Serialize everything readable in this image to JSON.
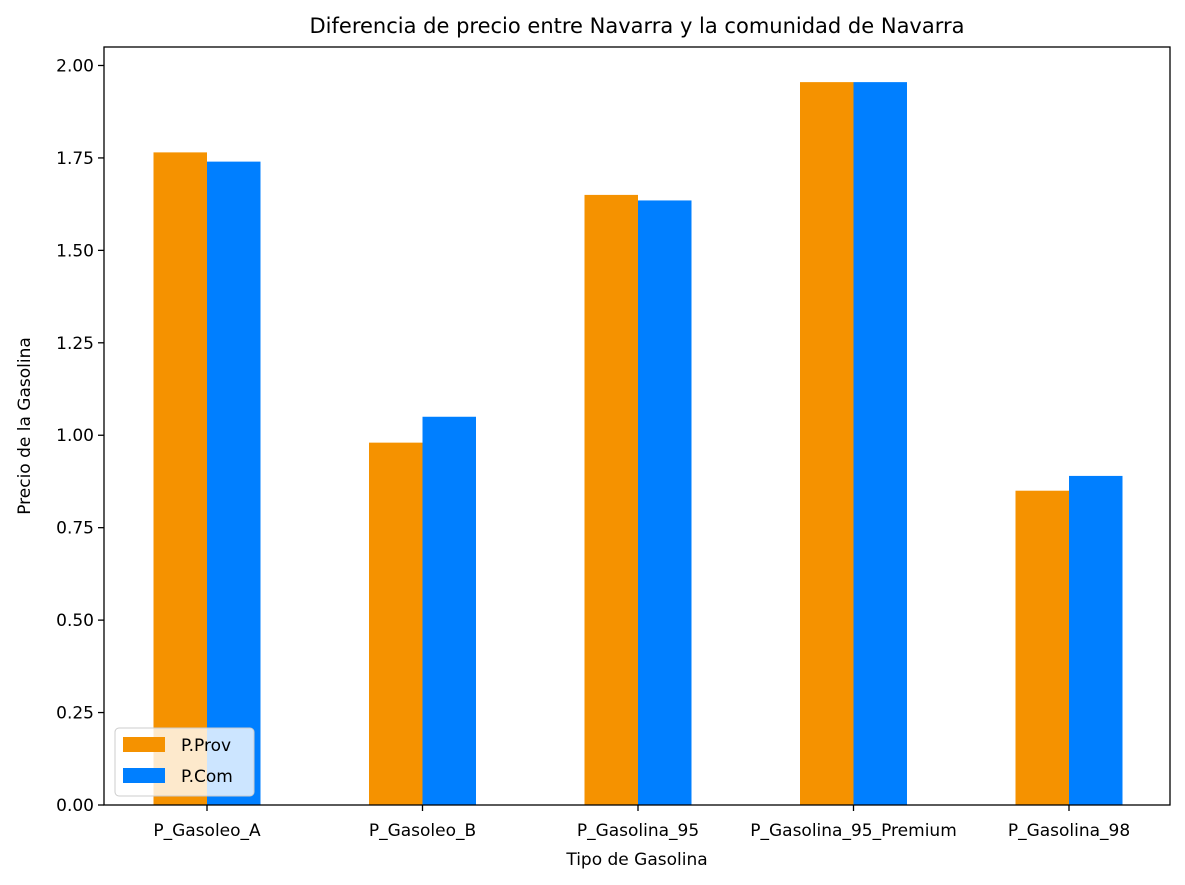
{
  "chart_data": {
    "type": "bar",
    "title": "Diferencia de precio entre Navarra y la comunidad de Navarra",
    "xlabel": "Tipo de Gasolina",
    "ylabel": "Precio de la Gasolina",
    "categories": [
      "P_Gasoleo_A",
      "P_Gasoleo_B",
      "P_Gasolina_95",
      "P_Gasolina_95_Premium",
      "P_Gasolina_98"
    ],
    "series": [
      {
        "name": "P.Prov",
        "color": "#f59200",
        "values": [
          1.765,
          0.98,
          1.65,
          1.955,
          0.85
        ]
      },
      {
        "name": "P.Com",
        "color": "#007fff",
        "values": [
          1.74,
          1.05,
          1.635,
          1.955,
          0.89
        ]
      }
    ],
    "ylim": [
      0,
      2.05
    ],
    "yticks": [
      "0.00",
      "0.25",
      "0.50",
      "0.75",
      "1.00",
      "1.25",
      "1.50",
      "1.75",
      "2.00"
    ],
    "grid": false,
    "legend_position": "lower-left"
  }
}
